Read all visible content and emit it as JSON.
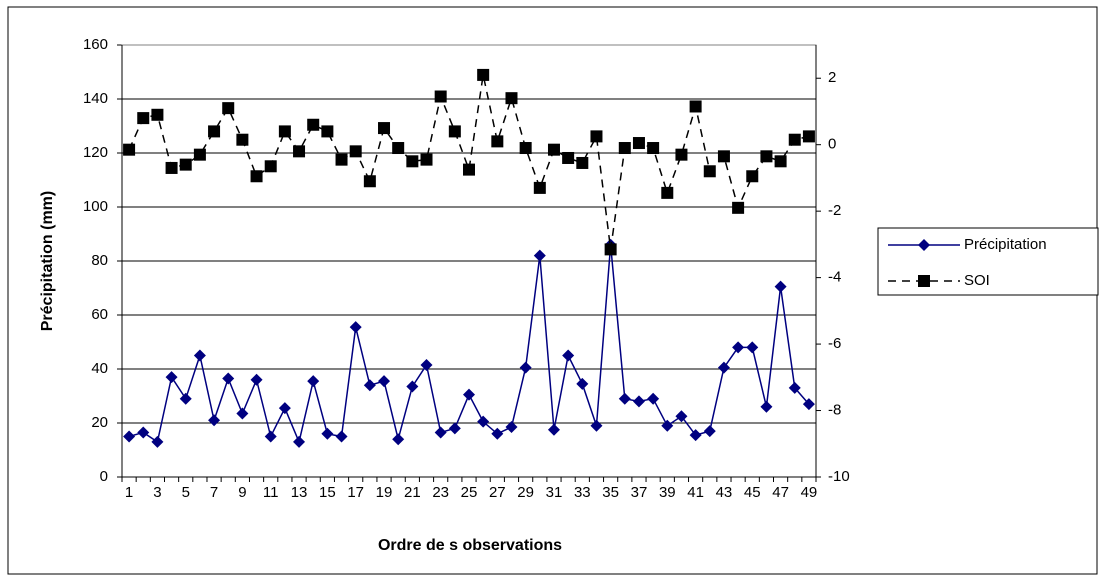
{
  "chart_data": {
    "type": "line",
    "xlabel": "Ordre de s observations",
    "ylabel": "Précipitation (mm)",
    "categories": [
      1,
      null,
      3,
      null,
      5,
      null,
      7,
      null,
      9,
      null,
      11,
      null,
      13,
      null,
      15,
      null,
      17,
      null,
      19,
      null,
      21,
      null,
      23,
      null,
      25,
      null,
      27,
      null,
      29,
      null,
      31,
      null,
      33,
      null,
      35,
      null,
      37,
      null,
      39,
      null,
      41,
      null,
      43,
      null,
      45,
      null,
      47,
      null,
      49
    ],
    "series": [
      {
        "name": "Précipitation",
        "color": "#000080",
        "marker": "diamond",
        "dash": false,
        "values": [
          15,
          16.5,
          13,
          37,
          29,
          45,
          21,
          36.5,
          23.5,
          36,
          15,
          25.5,
          13,
          35.5,
          16,
          15,
          55.5,
          34,
          35.5,
          14,
          33.5,
          41.5,
          16.5,
          18,
          30.5,
          20.5,
          16,
          18.5,
          40.5,
          82,
          17.5,
          45,
          34.5,
          19,
          86,
          29,
          28,
          29,
          19,
          22.5,
          15.5,
          17,
          40.5,
          48,
          48,
          26,
          70.5,
          33,
          27
        ]
      },
      {
        "name": "SOI",
        "color": "#000000",
        "marker": "square",
        "dash": true,
        "axis": "y2",
        "values": [
          -0.15,
          0.8,
          0.9,
          -0.7,
          -0.6,
          -0.3,
          0.4,
          1.1,
          0.15,
          -0.95,
          -0.65,
          0.4,
          -0.2,
          0.6,
          0.4,
          -0.45,
          -0.2,
          -1.1,
          0.5,
          -0.1,
          -0.5,
          -0.45,
          1.45,
          0.4,
          -0.75,
          2.1,
          0.1,
          1.4,
          -0.1,
          -1.3,
          -0.15,
          -0.4,
          -0.55,
          0.25,
          -3.15,
          -0.1,
          0.05,
          -0.1,
          -1.45,
          -0.3,
          1.15,
          -0.8,
          -0.35,
          -1.9,
          -0.95,
          -0.35,
          -0.5,
          0.15,
          0.25
        ]
      }
    ],
    "ylim": [
      0,
      160
    ],
    "yticks": [
      0,
      20,
      40,
      60,
      80,
      100,
      120,
      140,
      160
    ],
    "y2lim": [
      -10,
      3
    ],
    "y2ticks": [
      -10,
      -8,
      -6,
      -4,
      -2,
      0,
      2
    ],
    "grid": true,
    "legend": "right"
  }
}
